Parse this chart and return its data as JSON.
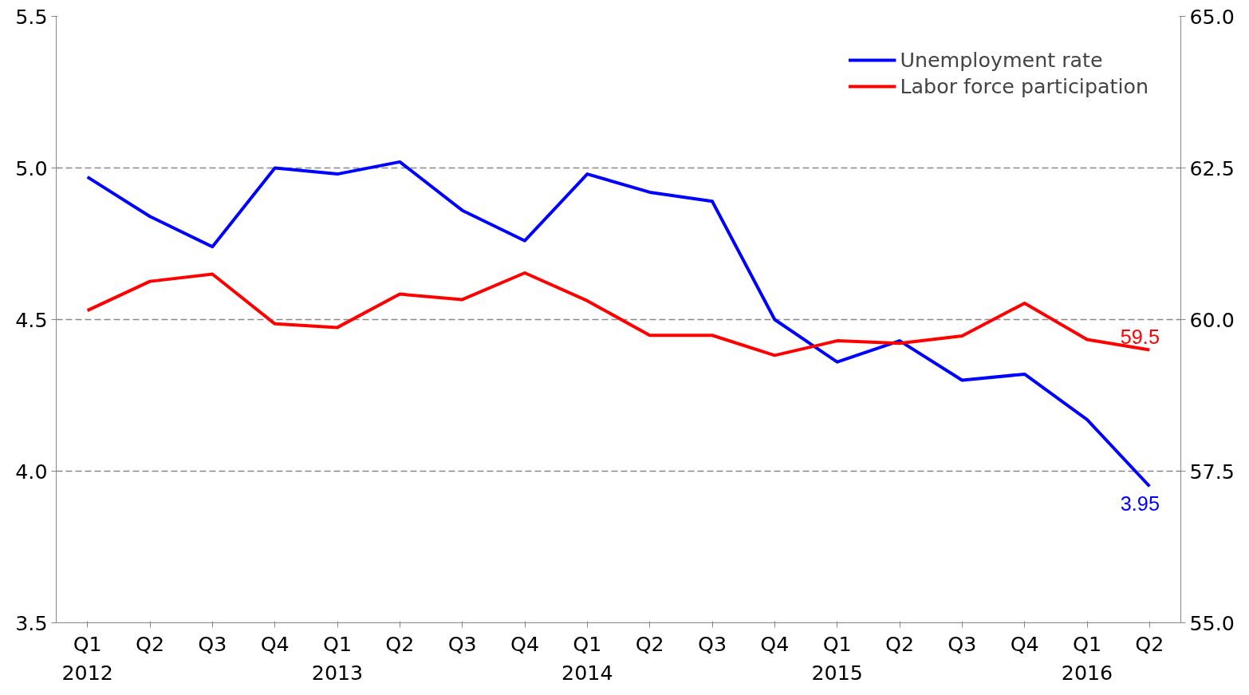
{
  "chart_data": {
    "type": "line",
    "categories": [
      "Q1\n2012",
      "Q2",
      "Q3",
      "Q4",
      "Q1\n2013",
      "Q2",
      "Q3",
      "Q4",
      "Q1\n2014",
      "Q2",
      "Q3",
      "Q4",
      "Q1\n2015",
      "Q2",
      "Q3",
      "Q4",
      "Q1\n2016",
      "Q2"
    ],
    "series": [
      {
        "name": "Unemployment rate",
        "color": "#0000ff",
        "axis": "y",
        "values": [
          4.97,
          4.84,
          4.74,
          5.0,
          4.98,
          5.02,
          4.86,
          4.76,
          4.98,
          4.92,
          4.89,
          4.5,
          4.36,
          4.43,
          4.3,
          4.32,
          4.17,
          3.95
        ],
        "value_labels": [
          null,
          null,
          null,
          null,
          null,
          null,
          null,
          null,
          null,
          null,
          null,
          null,
          null,
          null,
          null,
          null,
          null,
          "3.95"
        ]
      },
      {
        "name": "Labor force participation",
        "color": "#ff0000",
        "axis": "y2",
        "values": [
          60.15,
          60.63,
          60.75,
          59.93,
          59.87,
          60.42,
          60.33,
          60.77,
          60.31,
          59.74,
          59.74,
          59.41,
          59.65,
          59.61,
          59.73,
          60.27,
          59.67,
          59.5
        ],
        "value_labels": [
          null,
          null,
          null,
          null,
          null,
          null,
          null,
          null,
          null,
          null,
          null,
          null,
          null,
          null,
          null,
          null,
          null,
          "59.5"
        ]
      }
    ],
    "ylim": [
      3.5,
      5.5
    ],
    "yticks": [
      {
        "value": 3.5,
        "label": "3.5"
      },
      {
        "value": 4.0,
        "label": "4.0"
      },
      {
        "value": 4.5,
        "label": "4.5"
      },
      {
        "value": 5.0,
        "label": "5.0"
      },
      {
        "value": 5.5,
        "label": "5.5"
      }
    ],
    "y2lim": [
      55,
      65
    ],
    "y2ticks": [
      {
        "value": 55,
        "label": "55.0"
      },
      {
        "value": 57.5,
        "label": "57.5"
      },
      {
        "value": 60,
        "label": "60.0"
      },
      {
        "value": 62.5,
        "label": "62.5"
      },
      {
        "value": 65,
        "label": "65.0"
      }
    ],
    "grid": "y",
    "legend": "top right",
    "line_style": "solid",
    "marker": "none"
  }
}
